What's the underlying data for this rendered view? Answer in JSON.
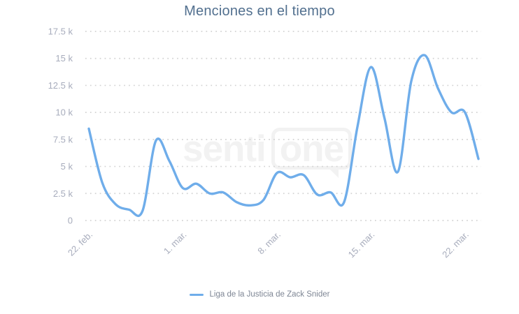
{
  "title": "Menciones en el tiempo",
  "watermark": {
    "part1": "senti",
    "part2": "one"
  },
  "legend": [
    {
      "label": "Liga de la Justicia de Zack Snider",
      "color": "#6fadea"
    }
  ],
  "colors": {
    "series_line": "#6fadea",
    "title_text": "#52708f",
    "axis_labels": "#a7acbc",
    "gridline": "#d2d2d2",
    "legend_text": "#7e8694",
    "watermark": "#f2f2f2",
    "background": "#ffffff"
  },
  "chart_data": {
    "type": "line",
    "title": "Menciones en el tiempo",
    "x": [
      "22 feb",
      "23 feb",
      "24 feb",
      "25 feb",
      "26 feb",
      "27 feb",
      "28 feb",
      "1 mar",
      "2 mar",
      "3 mar",
      "4 mar",
      "5 mar",
      "6 mar",
      "7 mar",
      "8 mar",
      "9 mar",
      "10 mar",
      "11 mar",
      "12 mar",
      "13 mar",
      "14 mar",
      "15 mar",
      "16 mar",
      "17 mar",
      "18 mar",
      "19 mar",
      "20 mar",
      "21 mar",
      "22 mar",
      "23 mar"
    ],
    "series": [
      {
        "name": "Liga de la Justicia de Zack Snider",
        "color": "#6fadea",
        "values": [
          8500,
          3500,
          1500,
          1000,
          900,
          7400,
          5500,
          3000,
          3400,
          2500,
          2600,
          1700,
          1400,
          1900,
          4400,
          4000,
          4200,
          2400,
          2600,
          1700,
          8700,
          14200,
          9500,
          4500,
          12900,
          15300,
          12200,
          10000,
          10000,
          5700
        ]
      }
    ],
    "xlabel": "",
    "ylabel": "",
    "ylim": [
      0,
      17500
    ],
    "ytick_values": [
      0,
      2500,
      5000,
      7500,
      10000,
      12500,
      15000,
      17500
    ],
    "ytick_labels": [
      "0",
      "2.5 k",
      "5 k",
      "7.5 k",
      "10 k",
      "12.5 k",
      "15 k",
      "17.5 k"
    ],
    "xticks": [
      {
        "index": 0,
        "label": "22. feb."
      },
      {
        "index": 7,
        "label": "1. mar."
      },
      {
        "index": 14,
        "label": "8. mar."
      },
      {
        "index": 21,
        "label": "15. mar."
      },
      {
        "index": 28,
        "label": "22. mar."
      }
    ],
    "grid": "dotted-horizontal",
    "legend_position": "bottom"
  }
}
